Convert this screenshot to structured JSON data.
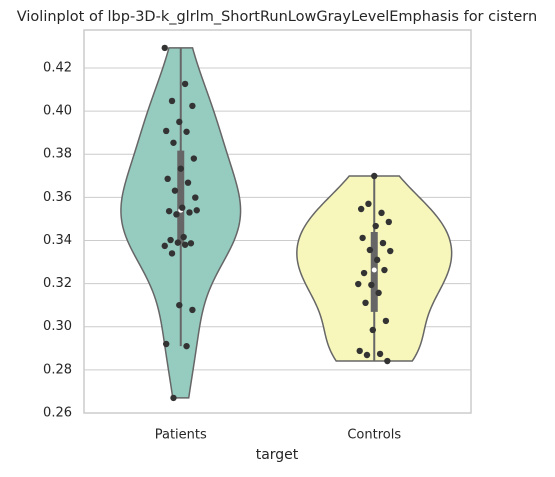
{
  "chart_data": {
    "type": "violin",
    "title": "Violinplot of lbp-3D-k_glrlm_ShortRunLowGrayLevelEmphasis for cistern",
    "x_label": "target",
    "categories": [
      "Patients",
      "Controls"
    ],
    "series": [
      {
        "name": "Patients",
        "color": "#96cbc0",
        "values": [
          0.4293,
          0.4126,
          0.4047,
          0.4024,
          0.395,
          0.3908,
          0.3904,
          0.3853,
          0.378,
          0.3733,
          0.3686,
          0.3668,
          0.3631,
          0.3599,
          0.3552,
          0.3536,
          0.353,
          0.3521,
          0.354,
          0.3416,
          0.3402,
          0.3387,
          0.339,
          0.3375,
          0.338,
          0.334,
          0.3078,
          0.31,
          0.292,
          0.291,
          0.267
        ]
      },
      {
        "name": "Controls",
        "color": "#f7f7bc",
        "values": [
          0.3699,
          0.3546,
          0.3528,
          0.357,
          0.3486,
          0.3467,
          0.3412,
          0.3388,
          0.3356,
          0.3351,
          0.331,
          0.3249,
          0.3263,
          0.3194,
          0.3198,
          0.3157,
          0.3111,
          0.3027,
          0.2985,
          0.2888,
          0.2874,
          0.2869,
          0.2841
        ]
      }
    ],
    "ylim": [
      0.26,
      0.4376
    ],
    "yticks": [
      0.26,
      0.28,
      {
        "value": 0.3,
        "label": "0.30"
      },
      0.32,
      0.34,
      0.36,
      0.38,
      {
        "value": 0.4,
        "label": "0.40"
      },
      0.42
    ],
    "grid": true
  }
}
